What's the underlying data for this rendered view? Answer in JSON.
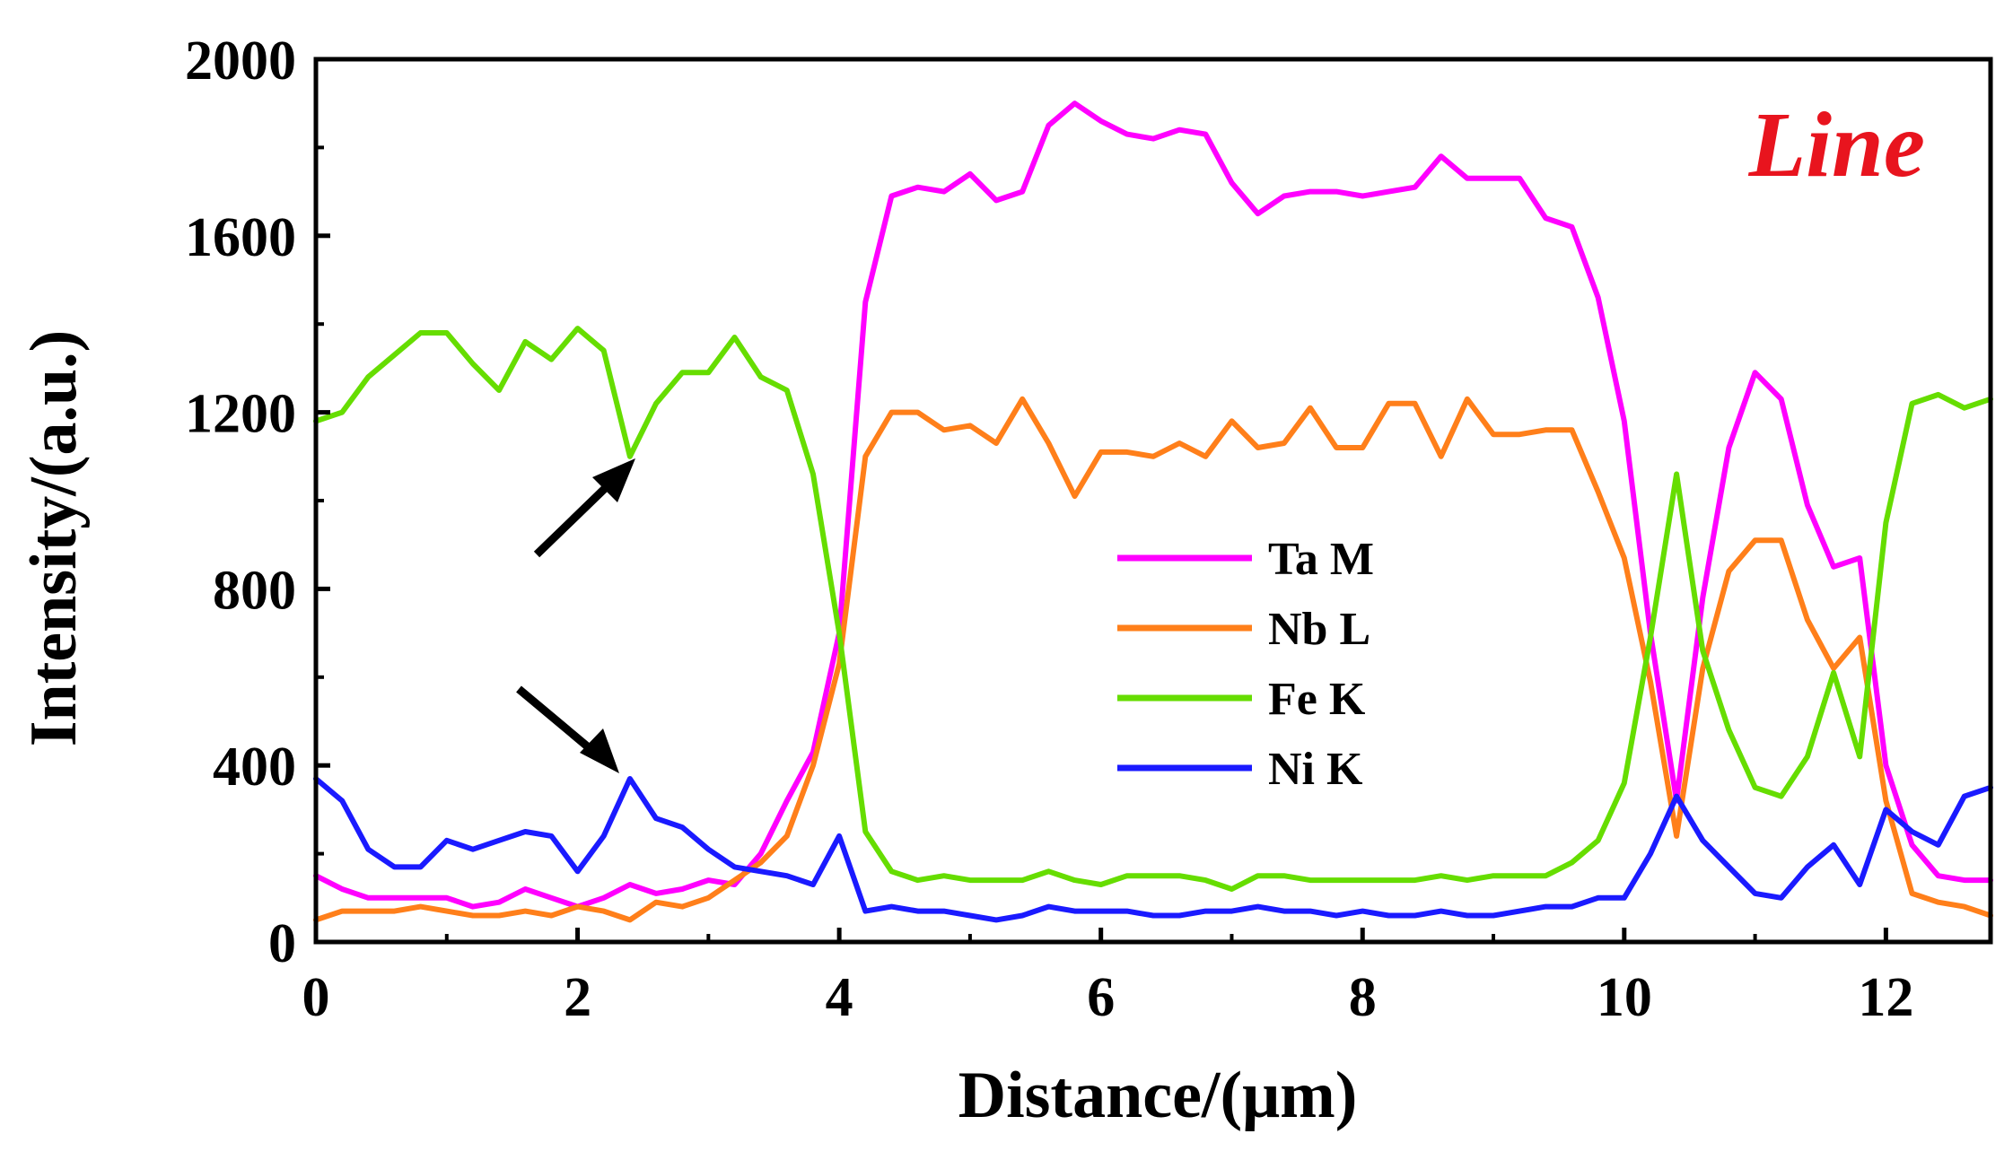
{
  "chart_data": {
    "type": "line",
    "xlabel": "Distance/(μm)",
    "ylabel": "Intensity/(a.u.)",
    "xlim": [
      0,
      12.8
    ],
    "ylim": [
      0,
      2000
    ],
    "xticks": [
      0,
      2,
      4,
      6,
      8,
      10,
      12
    ],
    "yticks": [
      0,
      400,
      800,
      1200,
      1600,
      2000
    ],
    "annotation": {
      "text": "Line",
      "color": "#e8141e"
    },
    "legend_position": "center-right",
    "x": [
      0,
      0.2,
      0.4,
      0.6,
      0.8,
      1.0,
      1.2,
      1.4,
      1.6,
      1.8,
      2.0,
      2.2,
      2.4,
      2.6,
      2.8,
      3.0,
      3.2,
      3.4,
      3.6,
      3.8,
      4.0,
      4.2,
      4.4,
      4.6,
      4.8,
      5.0,
      5.2,
      5.4,
      5.6,
      5.8,
      6.0,
      6.2,
      6.4,
      6.6,
      6.8,
      7.0,
      7.2,
      7.4,
      7.6,
      7.8,
      8.0,
      8.2,
      8.4,
      8.6,
      8.8,
      9.0,
      9.2,
      9.4,
      9.6,
      9.8,
      10.0,
      10.2,
      10.4,
      10.6,
      10.8,
      11.0,
      11.2,
      11.4,
      11.6,
      11.8,
      12.0,
      12.2,
      12.4,
      12.6,
      12.8
    ],
    "series": [
      {
        "name": "Ta M",
        "color": "#ff00ff",
        "values": [
          150,
          120,
          100,
          100,
          100,
          100,
          80,
          90,
          120,
          100,
          80,
          100,
          130,
          110,
          120,
          140,
          130,
          200,
          320,
          430,
          700,
          1450,
          1690,
          1710,
          1700,
          1740,
          1680,
          1700,
          1850,
          1900,
          1860,
          1830,
          1820,
          1840,
          1830,
          1720,
          1650,
          1690,
          1700,
          1700,
          1690,
          1700,
          1710,
          1780,
          1730,
          1730,
          1730,
          1640,
          1620,
          1460,
          1180,
          700,
          320,
          780,
          1120,
          1290,
          1230,
          990,
          850,
          870,
          400,
          220,
          150,
          140,
          140
        ]
      },
      {
        "name": "Nb L",
        "color": "#ff7f1a",
        "values": [
          50,
          70,
          70,
          70,
          80,
          70,
          60,
          60,
          70,
          60,
          80,
          70,
          50,
          90,
          80,
          100,
          140,
          180,
          240,
          400,
          630,
          1100,
          1200,
          1200,
          1160,
          1170,
          1130,
          1230,
          1130,
          1010,
          1110,
          1110,
          1100,
          1130,
          1100,
          1180,
          1120,
          1130,
          1210,
          1120,
          1120,
          1220,
          1220,
          1100,
          1230,
          1150,
          1150,
          1160,
          1160,
          1020,
          870,
          590,
          240,
          620,
          840,
          910,
          910,
          730,
          620,
          690,
          320,
          110,
          90,
          80,
          60
        ]
      },
      {
        "name": "Fe K",
        "color": "#66dd00",
        "values": [
          1180,
          1200,
          1280,
          1330,
          1380,
          1380,
          1310,
          1250,
          1360,
          1320,
          1390,
          1340,
          1100,
          1220,
          1290,
          1290,
          1370,
          1280,
          1250,
          1060,
          700,
          250,
          160,
          140,
          150,
          140,
          140,
          140,
          160,
          140,
          130,
          150,
          150,
          150,
          140,
          120,
          150,
          150,
          140,
          140,
          140,
          140,
          140,
          150,
          140,
          150,
          150,
          150,
          180,
          230,
          360,
          690,
          1060,
          660,
          480,
          350,
          330,
          420,
          610,
          420,
          950,
          1220,
          1240,
          1210,
          1230
        ]
      },
      {
        "name": "Ni K",
        "color": "#1a1aff",
        "values": [
          370,
          320,
          210,
          170,
          170,
          230,
          210,
          230,
          250,
          240,
          160,
          240,
          370,
          280,
          260,
          210,
          170,
          160,
          150,
          130,
          240,
          70,
          80,
          70,
          70,
          60,
          50,
          60,
          80,
          70,
          70,
          70,
          60,
          60,
          70,
          70,
          80,
          70,
          70,
          60,
          70,
          60,
          60,
          70,
          60,
          60,
          70,
          80,
          80,
          100,
          100,
          200,
          330,
          230,
          170,
          110,
          100,
          170,
          220,
          130,
          300,
          250,
          220,
          330,
          350
        ]
      }
    ]
  }
}
